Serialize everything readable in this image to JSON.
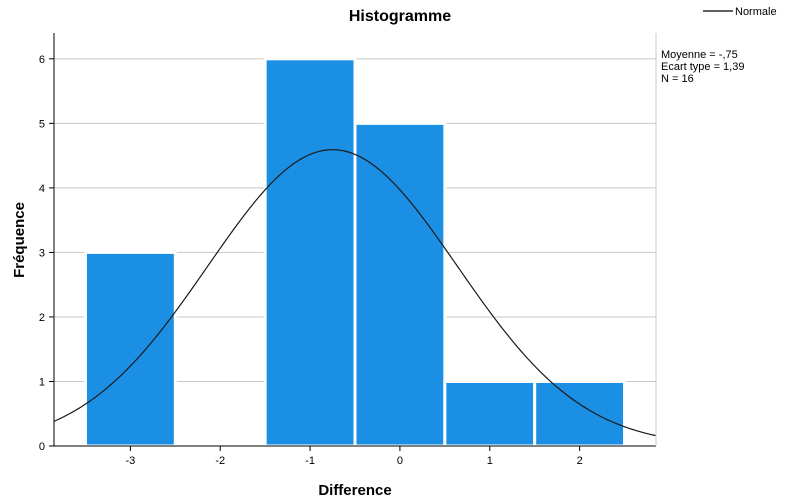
{
  "chart_data": {
    "type": "bar",
    "title": "Histogramme",
    "xlabel": "Difference",
    "ylabel": "Fréquence",
    "categories": [
      "-3",
      "-2",
      "-1",
      "0",
      "1",
      "2"
    ],
    "x": [
      -3,
      -2,
      -1,
      0,
      1,
      2
    ],
    "values": [
      3,
      0,
      6,
      5,
      1,
      1
    ],
    "xlim": [
      -3.85,
      2.85
    ],
    "ylim": [
      0,
      6.4
    ],
    "yticks": [
      0,
      1,
      2,
      3,
      4,
      5,
      6
    ],
    "xticks": [
      -3,
      -2,
      -1,
      0,
      1,
      2
    ],
    "grid": true,
    "bar_color": "#1a8fe3",
    "normal_curve": {
      "mean": -0.75,
      "sd": 1.39,
      "n": 16,
      "bin_width": 1,
      "color": "#1a1a1a"
    },
    "stats_box": {
      "mean_label": "Moyenne = -,75",
      "sd_label": "Ecart type = 1,39",
      "n_label": "N = 16"
    },
    "legend": {
      "entries": [
        "Normale"
      ],
      "position": "top-right"
    }
  }
}
